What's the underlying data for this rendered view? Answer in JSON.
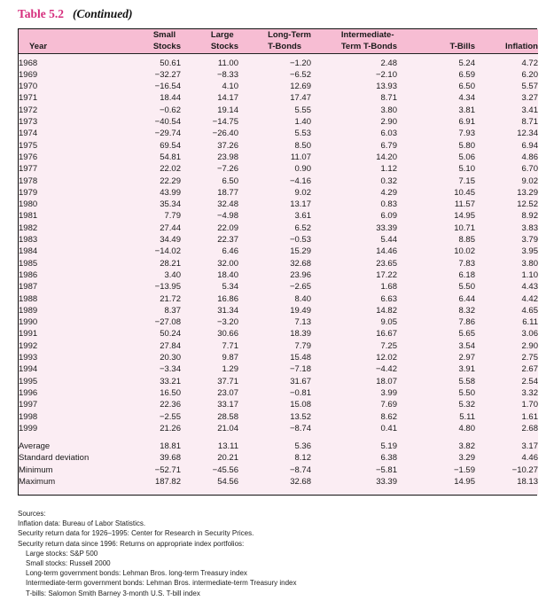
{
  "title": {
    "label": "Table 5.2",
    "continued": "(Continued)"
  },
  "colors": {
    "header_bg": "#f7bdd3",
    "body_bg": "#fbedf3",
    "title_accent": "#d62e7d",
    "border": "#111111"
  },
  "table": {
    "columns": [
      {
        "label_lines": [
          "Year"
        ]
      },
      {
        "label_lines": [
          "Small",
          "Stocks"
        ]
      },
      {
        "label_lines": [
          "Large",
          "Stocks"
        ]
      },
      {
        "label_lines": [
          "Long-Term",
          "T-Bonds"
        ]
      },
      {
        "label_lines": [
          "Intermediate-",
          "Term T-Bonds"
        ]
      },
      {
        "label_lines": [
          "T-Bills"
        ]
      },
      {
        "label_lines": [
          "Inflation"
        ]
      }
    ],
    "rows": [
      [
        "1968",
        "50.61",
        "11.00",
        "−1.20",
        "2.48",
        "5.24",
        "4.72"
      ],
      [
        "1969",
        "−32.27",
        "−8.33",
        "−6.52",
        "−2.10",
        "6.59",
        "6.20"
      ],
      [
        "1970",
        "−16.54",
        "4.10",
        "12.69",
        "13.93",
        "6.50",
        "5.57"
      ],
      [
        "1971",
        "18.44",
        "14.17",
        "17.47",
        "8.71",
        "4.34",
        "3.27"
      ],
      [
        "1972",
        "−0.62",
        "19.14",
        "5.55",
        "3.80",
        "3.81",
        "3.41"
      ],
      [
        "1973",
        "−40.54",
        "−14.75",
        "1.40",
        "2.90",
        "6.91",
        "8.71"
      ],
      [
        "1974",
        "−29.74",
        "−26.40",
        "5.53",
        "6.03",
        "7.93",
        "12.34"
      ],
      [
        "1975",
        "69.54",
        "37.26",
        "8.50",
        "6.79",
        "5.80",
        "6.94"
      ],
      [
        "1976",
        "54.81",
        "23.98",
        "11.07",
        "14.20",
        "5.06",
        "4.86"
      ],
      [
        "1977",
        "22.02",
        "−7.26",
        "0.90",
        "1.12",
        "5.10",
        "6.70"
      ],
      [
        "1978",
        "22.29",
        "6.50",
        "−4.16",
        "0.32",
        "7.15",
        "9.02"
      ],
      [
        "1979",
        "43.99",
        "18.77",
        "9.02",
        "4.29",
        "10.45",
        "13.29"
      ],
      [
        "1980",
        "35.34",
        "32.48",
        "13.17",
        "0.83",
        "11.57",
        "12.52"
      ],
      [
        "1981",
        "7.79",
        "−4.98",
        "3.61",
        "6.09",
        "14.95",
        "8.92"
      ],
      [
        "1982",
        "27.44",
        "22.09",
        "6.52",
        "33.39",
        "10.71",
        "3.83"
      ],
      [
        "1983",
        "34.49",
        "22.37",
        "−0.53",
        "5.44",
        "8.85",
        "3.79"
      ],
      [
        "1984",
        "−14.02",
        "6.46",
        "15.29",
        "14.46",
        "10.02",
        "3.95"
      ],
      [
        "1985",
        "28.21",
        "32.00",
        "32.68",
        "23.65",
        "7.83",
        "3.80"
      ],
      [
        "1986",
        "3.40",
        "18.40",
        "23.96",
        "17.22",
        "6.18",
        "1.10"
      ],
      [
        "1987",
        "−13.95",
        "5.34",
        "−2.65",
        "1.68",
        "5.50",
        "4.43"
      ],
      [
        "1988",
        "21.72",
        "16.86",
        "8.40",
        "6.63",
        "6.44",
        "4.42"
      ],
      [
        "1989",
        "8.37",
        "31.34",
        "19.49",
        "14.82",
        "8.32",
        "4.65"
      ],
      [
        "1990",
        "−27.08",
        "−3.20",
        "7.13",
        "9.05",
        "7.86",
        "6.11"
      ],
      [
        "1991",
        "50.24",
        "30.66",
        "18.39",
        "16.67",
        "5.65",
        "3.06"
      ],
      [
        "1992",
        "27.84",
        "7.71",
        "7.79",
        "7.25",
        "3.54",
        "2.90"
      ],
      [
        "1993",
        "20.30",
        "9.87",
        "15.48",
        "12.02",
        "2.97",
        "2.75"
      ],
      [
        "1994",
        "−3.34",
        "1.29",
        "−7.18",
        "−4.42",
        "3.91",
        "2.67"
      ],
      [
        "1995",
        "33.21",
        "37.71",
        "31.67",
        "18.07",
        "5.58",
        "2.54"
      ],
      [
        "1996",
        "16.50",
        "23.07",
        "−0.81",
        "3.99",
        "5.50",
        "3.32"
      ],
      [
        "1997",
        "22.36",
        "33.17",
        "15.08",
        "7.69",
        "5.32",
        "1.70"
      ],
      [
        "1998",
        "−2.55",
        "28.58",
        "13.52",
        "8.62",
        "5.11",
        "1.61"
      ],
      [
        "1999",
        "21.26",
        "21.04",
        "−8.74",
        "0.41",
        "4.80",
        "2.68"
      ]
    ],
    "summary_rows": [
      [
        "Average",
        "18.81",
        "13.11",
        "5.36",
        "5.19",
        "3.82",
        "3.17"
      ],
      [
        "Standard deviation",
        "39.68",
        "20.21",
        "8.12",
        "6.38",
        "3.29",
        "4.46"
      ],
      [
        "Minimum",
        "−52.71",
        "−45.56",
        "−8.74",
        "−5.81",
        "−1.59",
        "−10.27"
      ],
      [
        "Maximum",
        "187.82",
        "54.56",
        "32.68",
        "33.39",
        "14.95",
        "18.13"
      ]
    ]
  },
  "footnotes": {
    "heading": "Sources:",
    "lines": [
      {
        "text": "Inflation data: Bureau of Labor Statistics.",
        "indent": false
      },
      {
        "text": "Security return data for 1926–1995: Center for Research in Security Prices.",
        "indent": false
      },
      {
        "text": "Security return data since 1996: Returns on appropriate index portfolios:",
        "indent": false
      },
      {
        "text": "Large stocks: S&P 500",
        "indent": true
      },
      {
        "text": "Small stocks: Russell 2000",
        "indent": true
      },
      {
        "text": "Long-term government bonds: Lehman Bros. long-term Treasury index",
        "indent": true
      },
      {
        "text": "Intermediate-term government bonds: Lehman Bros. intermediate-term Treasury index",
        "indent": true
      },
      {
        "text": "T-bills: Salomon Smith Barney 3-month U.S. T-bill index",
        "indent": true
      }
    ]
  }
}
